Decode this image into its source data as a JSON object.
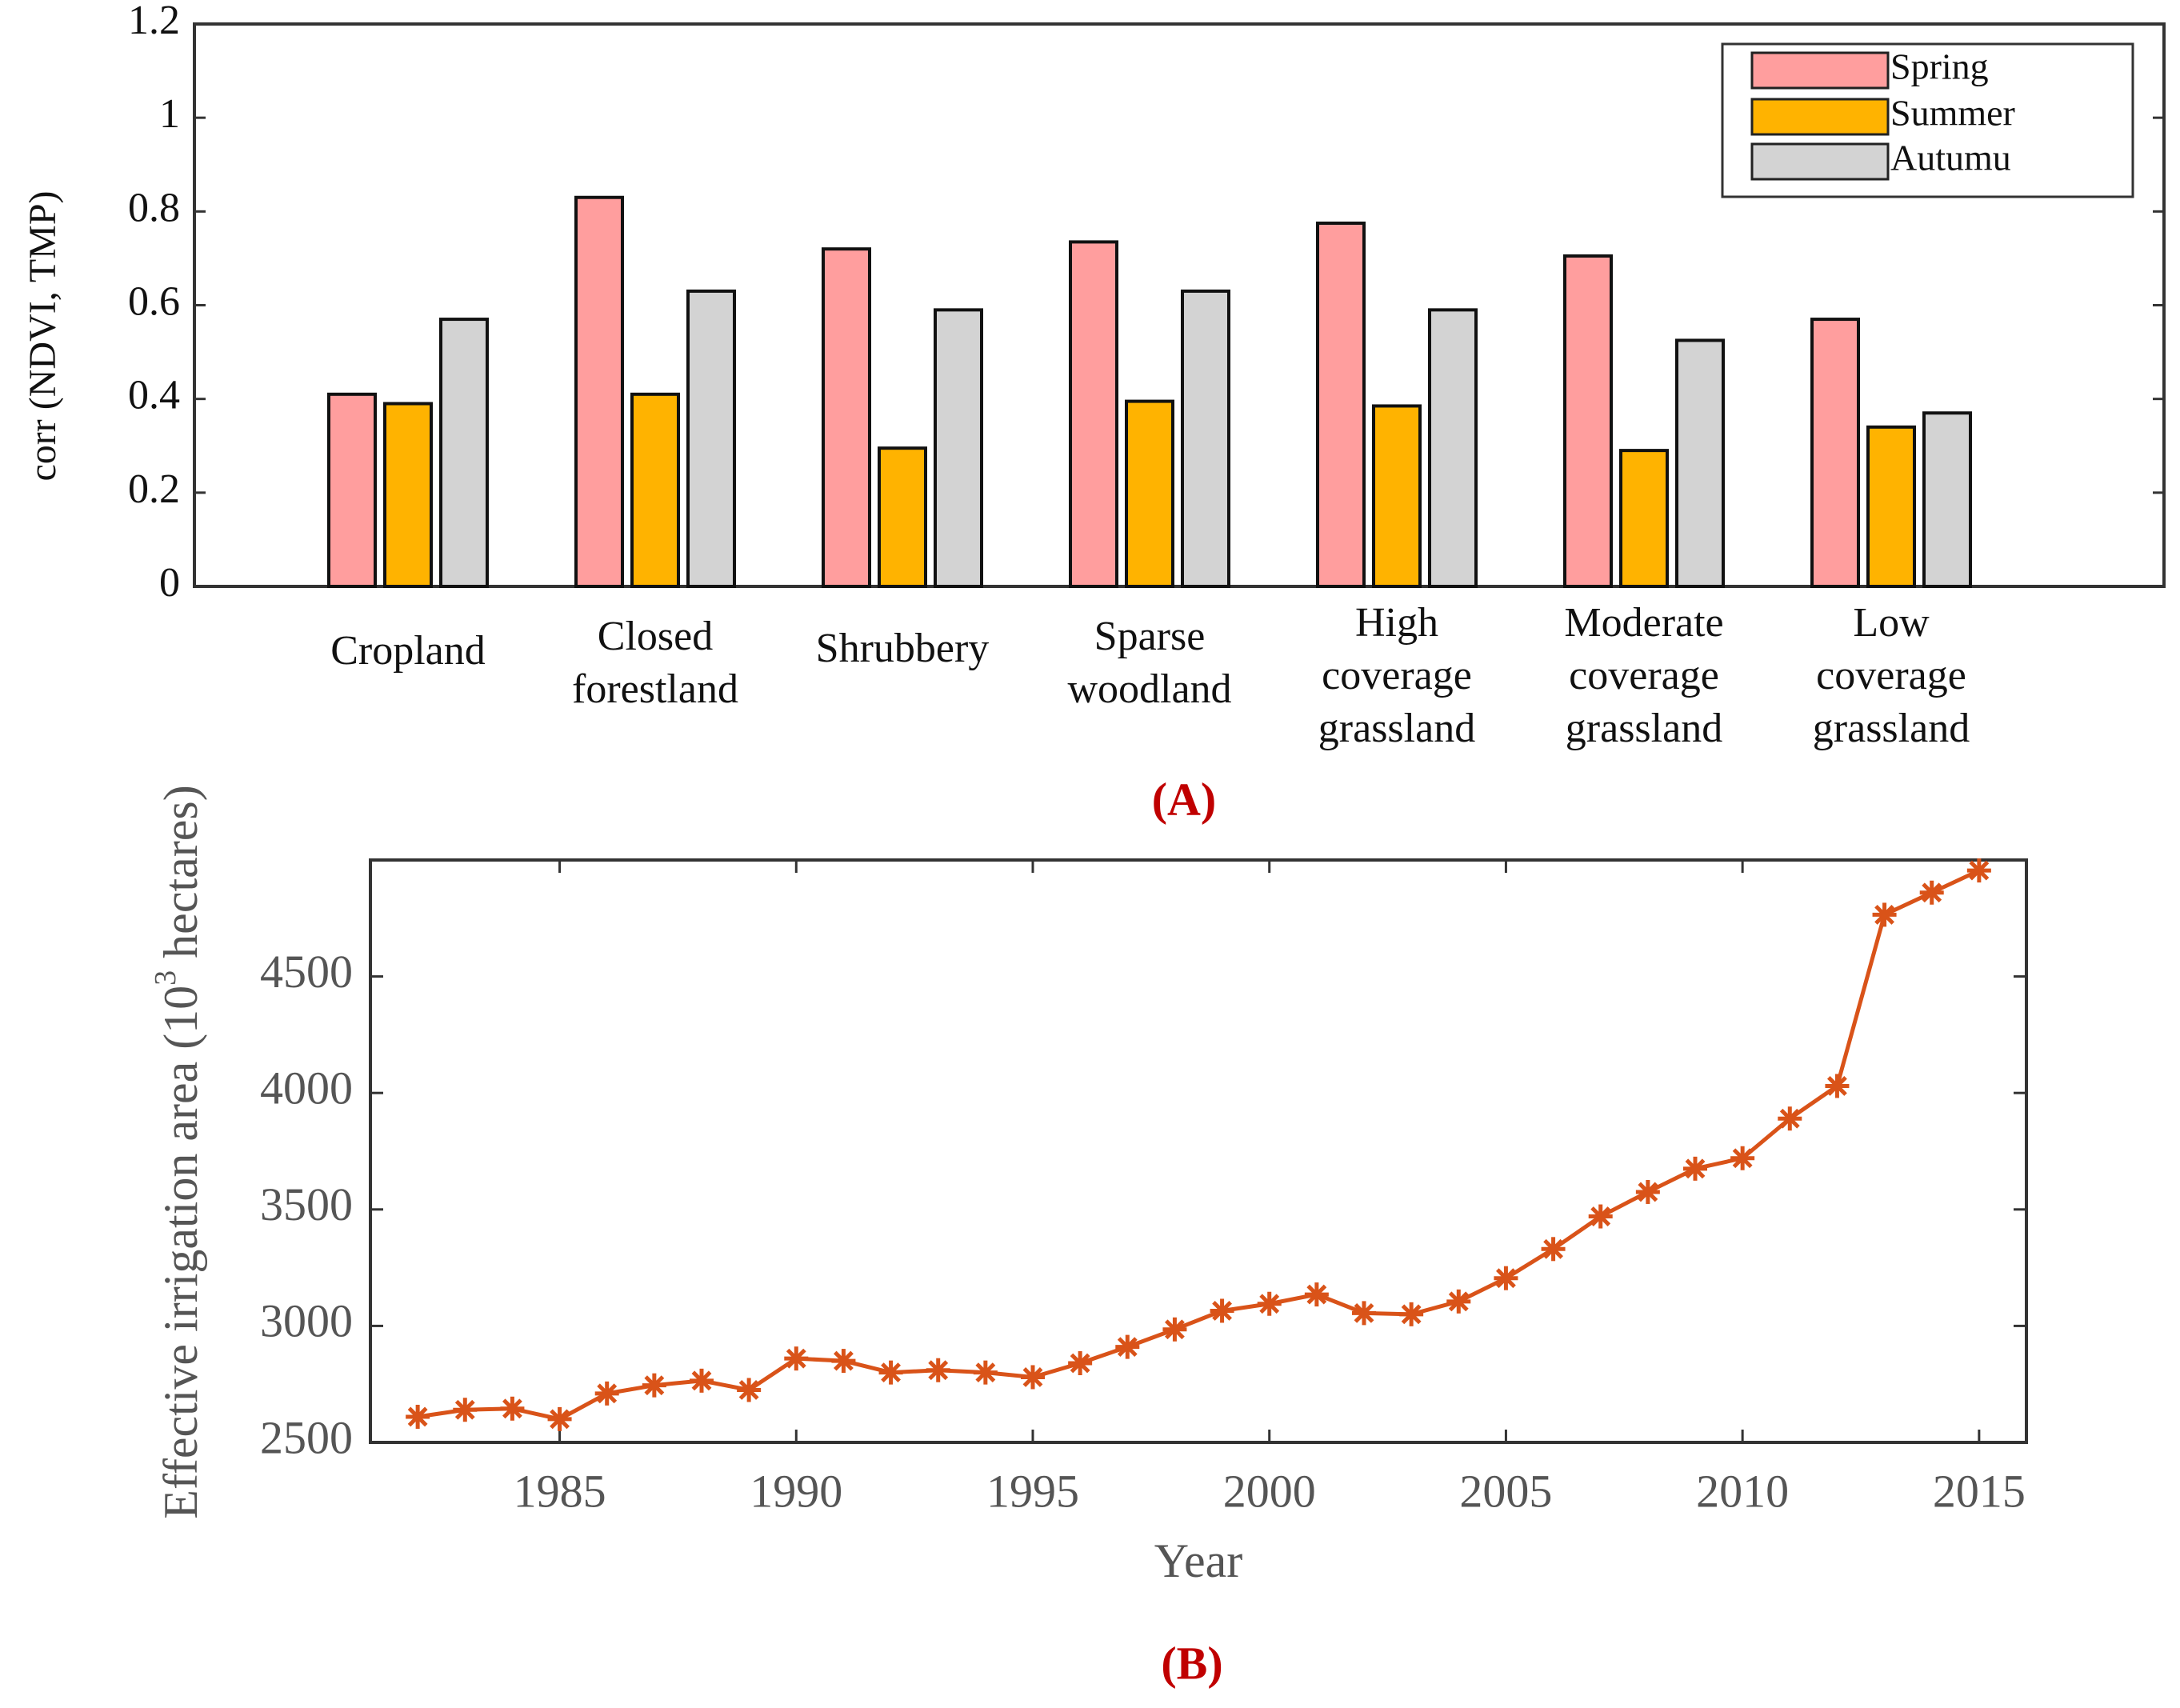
{
  "panel_a_label": "(A)",
  "panel_b_label": "(B)",
  "colors": {
    "spring": "#ff9e9e",
    "summer": "#ffb300",
    "autumn": "#d3d3d3",
    "line": "#d95319",
    "label": "#c00000",
    "axis": "#333333"
  },
  "chart_data": [
    {
      "type": "bar",
      "ylabel": "corr (NDVI, TMP)",
      "ylim": [
        0,
        1.2
      ],
      "yticks": [
        0,
        0.2,
        0.4,
        0.6,
        0.8,
        1,
        1.2
      ],
      "categories": [
        [
          "Cropland"
        ],
        [
          "Closed",
          "forestland"
        ],
        [
          "Shrubbery"
        ],
        [
          "Sparse",
          "woodland"
        ],
        [
          "High",
          "coverage",
          "grassland"
        ],
        [
          "Moderate",
          "coverage",
          "grassland"
        ],
        [
          "Low",
          "coverage",
          "grassland"
        ]
      ],
      "series": [
        {
          "name": "Spring",
          "color": "#ff9e9e",
          "values": [
            0.41,
            0.83,
            0.72,
            0.735,
            0.775,
            0.705,
            0.57
          ]
        },
        {
          "name": "Summer",
          "color": "#ffb300",
          "values": [
            0.39,
            0.41,
            0.295,
            0.395,
            0.385,
            0.29,
            0.34
          ]
        },
        {
          "name": "Autumu",
          "color": "#d3d3d3",
          "values": [
            0.57,
            0.63,
            0.59,
            0.63,
            0.59,
            0.525,
            0.37
          ]
        }
      ],
      "legend": "top-right"
    },
    {
      "type": "line",
      "xlabel": "Year",
      "ylabel_main": "Effective irrigation area (10",
      "ylabel_sup": "3",
      "ylabel_tail": " hectares)",
      "xlim": [
        1981,
        2016
      ],
      "ylim": [
        2500,
        5000
      ],
      "xticks": [
        1985,
        1990,
        1995,
        2000,
        2005,
        2010,
        2015
      ],
      "yticks": [
        2500,
        3000,
        3500,
        4000,
        4500
      ],
      "marker": "asterisk",
      "x": [
        1982,
        1983,
        1984,
        1985,
        1986,
        1987,
        1988,
        1989,
        1990,
        1991,
        1992,
        1993,
        1994,
        1995,
        1996,
        1997,
        1998,
        1999,
        2000,
        2001,
        2002,
        2003,
        2004,
        2005,
        2006,
        2007,
        2008,
        2009,
        2010,
        2011,
        2012,
        2013,
        2014,
        2015
      ],
      "y": [
        2610,
        2640,
        2645,
        2600,
        2710,
        2745,
        2765,
        2725,
        2860,
        2850,
        2800,
        2810,
        2800,
        2780,
        2840,
        2910,
        2985,
        3065,
        3095,
        3135,
        3055,
        3050,
        3105,
        3205,
        3330,
        3470,
        3575,
        3675,
        3720,
        3890,
        4030,
        4765,
        4860,
        4955
      ]
    }
  ]
}
